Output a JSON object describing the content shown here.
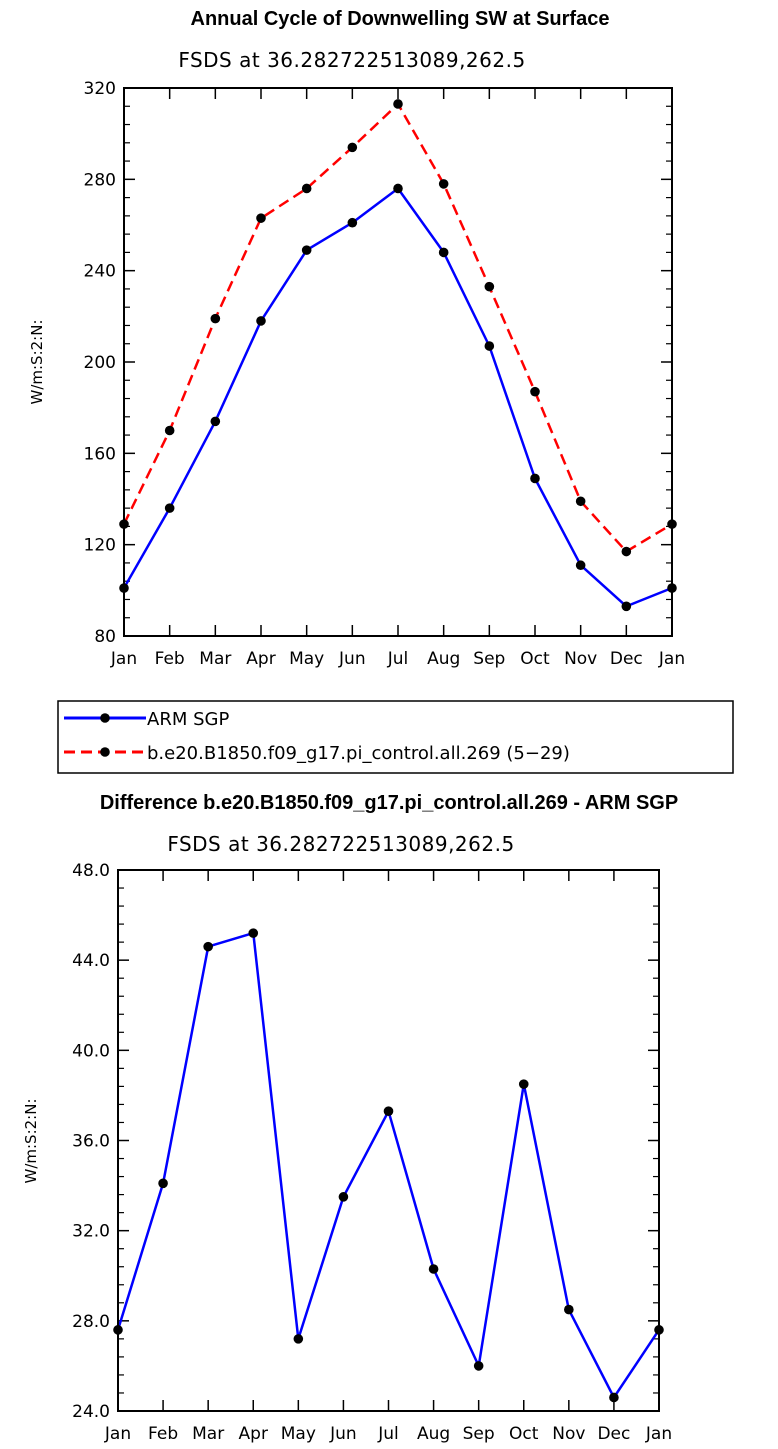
{
  "chart_data": [
    {
      "type": "line",
      "title": "Annual Cycle of Downwelling SW at Surface",
      "subtitle": "FSDS at 36.282722513089,262.5",
      "xlabel": "",
      "ylabel": "W/m:S:2:N:",
      "categories": [
        "Jan",
        "Feb",
        "Mar",
        "Apr",
        "May",
        "Jun",
        "Jul",
        "Aug",
        "Sep",
        "Oct",
        "Nov",
        "Dec",
        "Jan"
      ],
      "ylim": [
        80,
        320
      ],
      "yticks": [
        80,
        120,
        160,
        200,
        240,
        280,
        320
      ],
      "ytick_labels": [
        "80",
        "120",
        "160",
        "200",
        "240",
        "280",
        "320"
      ],
      "series": [
        {
          "name": "ARM SGP",
          "color": "#0000ff",
          "dash": "solid",
          "values": [
            101,
            136,
            174,
            218,
            249,
            261,
            276,
            248,
            207,
            149,
            111,
            93,
            101
          ]
        },
        {
          "name": "b.e20.B1850.f09_g17.pi_control.all.269 (5−29)",
          "color": "#ff0000",
          "dash": "dashed",
          "values": [
            129,
            170,
            219,
            263,
            276,
            294,
            313,
            278,
            233,
            187,
            139,
            117,
            129
          ]
        }
      ],
      "legend": "below"
    },
    {
      "type": "line",
      "title": "Difference b.e20.B1850.f09_g17.pi_control.all.269 - ARM SGP",
      "subtitle": "FSDS at 36.282722513089,262.5",
      "xlabel": "",
      "ylabel": "W/m:S:2:N:",
      "categories": [
        "Jan",
        "Feb",
        "Mar",
        "Apr",
        "May",
        "Jun",
        "Jul",
        "Aug",
        "Sep",
        "Oct",
        "Nov",
        "Dec",
        "Jan"
      ],
      "ylim": [
        24,
        48
      ],
      "yticks": [
        24,
        28,
        32,
        36,
        40,
        44,
        48
      ],
      "ytick_labels": [
        "24.0",
        "28.0",
        "32.0",
        "36.0",
        "40.0",
        "44.0",
        "48.0"
      ],
      "series": [
        {
          "name": "Difference",
          "color": "#0000ff",
          "dash": "solid",
          "values": [
            27.6,
            34.1,
            44.6,
            45.2,
            27.2,
            33.5,
            37.3,
            30.3,
            26.0,
            38.5,
            28.5,
            24.6,
            27.6
          ]
        }
      ]
    }
  ]
}
